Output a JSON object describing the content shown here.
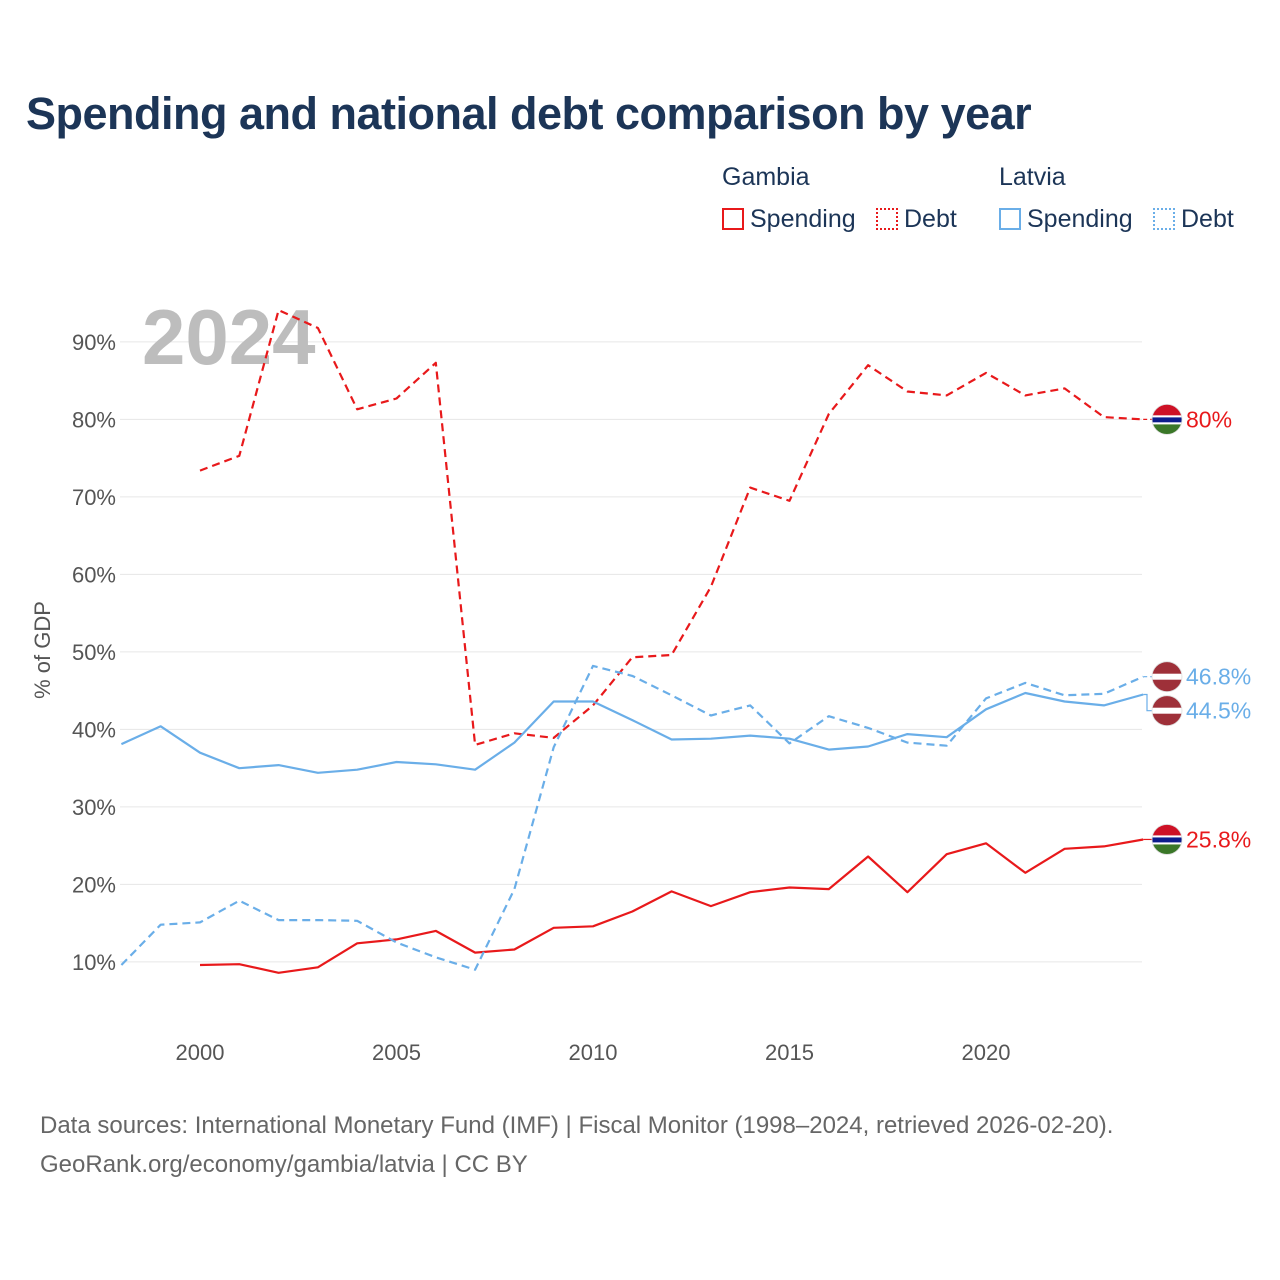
{
  "title": "Spending and national debt comparison by year",
  "legend": {
    "groups": [
      {
        "name": "Gambia",
        "items": [
          {
            "label": "Spending",
            "style": "solid",
            "color": "#e8191b"
          },
          {
            "label": "Debt",
            "style": "dotted",
            "color": "#e8191b"
          }
        ]
      },
      {
        "name": "Latvia",
        "items": [
          {
            "label": "Spending",
            "style": "solid",
            "color": "#6aaee8"
          },
          {
            "label": "Debt",
            "style": "dotted",
            "color": "#6aaee8"
          }
        ]
      }
    ]
  },
  "colors": {
    "gambia": "#e8191b",
    "latvia": "#6aaee8",
    "grid": "#e6e6e6",
    "title": "#1c3557"
  },
  "footer": {
    "line1": "Data sources: International Monetary Fund (IMF) | Fiscal Monitor (1998–2024, retrieved 2026-02-20).",
    "line2": "GeoRank.org/economy/gambia/latvia | CC BY"
  },
  "chart_data": {
    "type": "line",
    "title": "Spending and national debt comparison by year",
    "current_year_label": "2024",
    "ylabel": "% of GDP",
    "xlabel": "",
    "xlim": [
      1998,
      2024
    ],
    "ylim": [
      2,
      100
    ],
    "yticks": [
      10,
      20,
      30,
      40,
      50,
      60,
      70,
      80,
      90
    ],
    "ytick_labels": [
      "10%",
      "20%",
      "30%",
      "40%",
      "50%",
      "60%",
      "70%",
      "80%",
      "90%"
    ],
    "xticks": [
      2000,
      2005,
      2010,
      2015,
      2020
    ],
    "xtick_labels": [
      "2000",
      "2005",
      "2010",
      "2015",
      "2020"
    ],
    "grid": "horizontal",
    "series": [
      {
        "name": "Gambia Debt",
        "country": "Gambia",
        "metric": "Debt",
        "color": "#e8191b",
        "dash": true,
        "end_label": "80%",
        "flag": "gambia",
        "x": [
          2000,
          2001,
          2002,
          2003,
          2004,
          2005,
          2006,
          2007,
          2008,
          2009,
          2010,
          2011,
          2012,
          2013,
          2014,
          2015,
          2016,
          2017,
          2018,
          2019,
          2020,
          2021,
          2022,
          2023,
          2024
        ],
        "values": [
          73.4,
          75.3,
          94.1,
          91.8,
          81.3,
          82.7,
          87.3,
          38.0,
          39.5,
          38.9,
          43.1,
          49.3,
          49.6,
          58.4,
          71.2,
          69.5,
          80.7,
          87.0,
          83.6,
          83.1,
          86.0,
          83.1,
          84.0,
          80.3,
          80.0
        ]
      },
      {
        "name": "Gambia Spending",
        "country": "Gambia",
        "metric": "Spending",
        "color": "#e8191b",
        "dash": false,
        "end_label": "25.8%",
        "flag": "gambia",
        "x": [
          2000,
          2001,
          2002,
          2003,
          2004,
          2005,
          2006,
          2007,
          2008,
          2009,
          2010,
          2011,
          2012,
          2013,
          2014,
          2015,
          2016,
          2017,
          2018,
          2019,
          2020,
          2021,
          2022,
          2023,
          2024
        ],
        "values": [
          9.6,
          9.7,
          8.6,
          9.3,
          12.4,
          12.9,
          14.0,
          11.2,
          11.6,
          14.4,
          14.6,
          16.5,
          19.1,
          17.2,
          19.0,
          19.6,
          19.4,
          23.6,
          19.0,
          23.9,
          25.3,
          21.5,
          24.6,
          24.9,
          25.8
        ]
      },
      {
        "name": "Latvia Debt",
        "country": "Latvia",
        "metric": "Debt",
        "color": "#6aaee8",
        "dash": true,
        "end_label": "46.8%",
        "flag": "latvia",
        "x": [
          1998,
          1999,
          2000,
          2001,
          2002,
          2003,
          2004,
          2005,
          2006,
          2007,
          2008,
          2009,
          2010,
          2011,
          2012,
          2013,
          2014,
          2015,
          2016,
          2017,
          2018,
          2019,
          2020,
          2021,
          2022,
          2023,
          2024
        ],
        "values": [
          9.6,
          14.8,
          15.1,
          17.9,
          15.4,
          15.4,
          15.3,
          12.5,
          10.6,
          9.0,
          19.4,
          37.7,
          48.2,
          46.9,
          44.4,
          41.8,
          43.1,
          38.2,
          41.7,
          40.2,
          38.3,
          37.9,
          44.0,
          46.0,
          44.4,
          44.6,
          46.8
        ]
      },
      {
        "name": "Latvia Spending",
        "country": "Latvia",
        "metric": "Spending",
        "color": "#6aaee8",
        "dash": false,
        "end_label": "44.5%",
        "flag": "latvia",
        "x": [
          1998,
          1999,
          2000,
          2001,
          2002,
          2003,
          2004,
          2005,
          2006,
          2007,
          2008,
          2009,
          2010,
          2011,
          2012,
          2013,
          2014,
          2015,
          2016,
          2017,
          2018,
          2019,
          2020,
          2021,
          2022,
          2023,
          2024
        ],
        "values": [
          38.1,
          40.4,
          37.0,
          35.0,
          35.4,
          34.4,
          34.8,
          35.8,
          35.5,
          34.8,
          38.3,
          43.6,
          43.6,
          41.2,
          38.7,
          38.8,
          39.2,
          38.8,
          37.4,
          37.8,
          39.4,
          39.0,
          42.6,
          44.7,
          43.6,
          43.1,
          44.5
        ]
      }
    ]
  }
}
